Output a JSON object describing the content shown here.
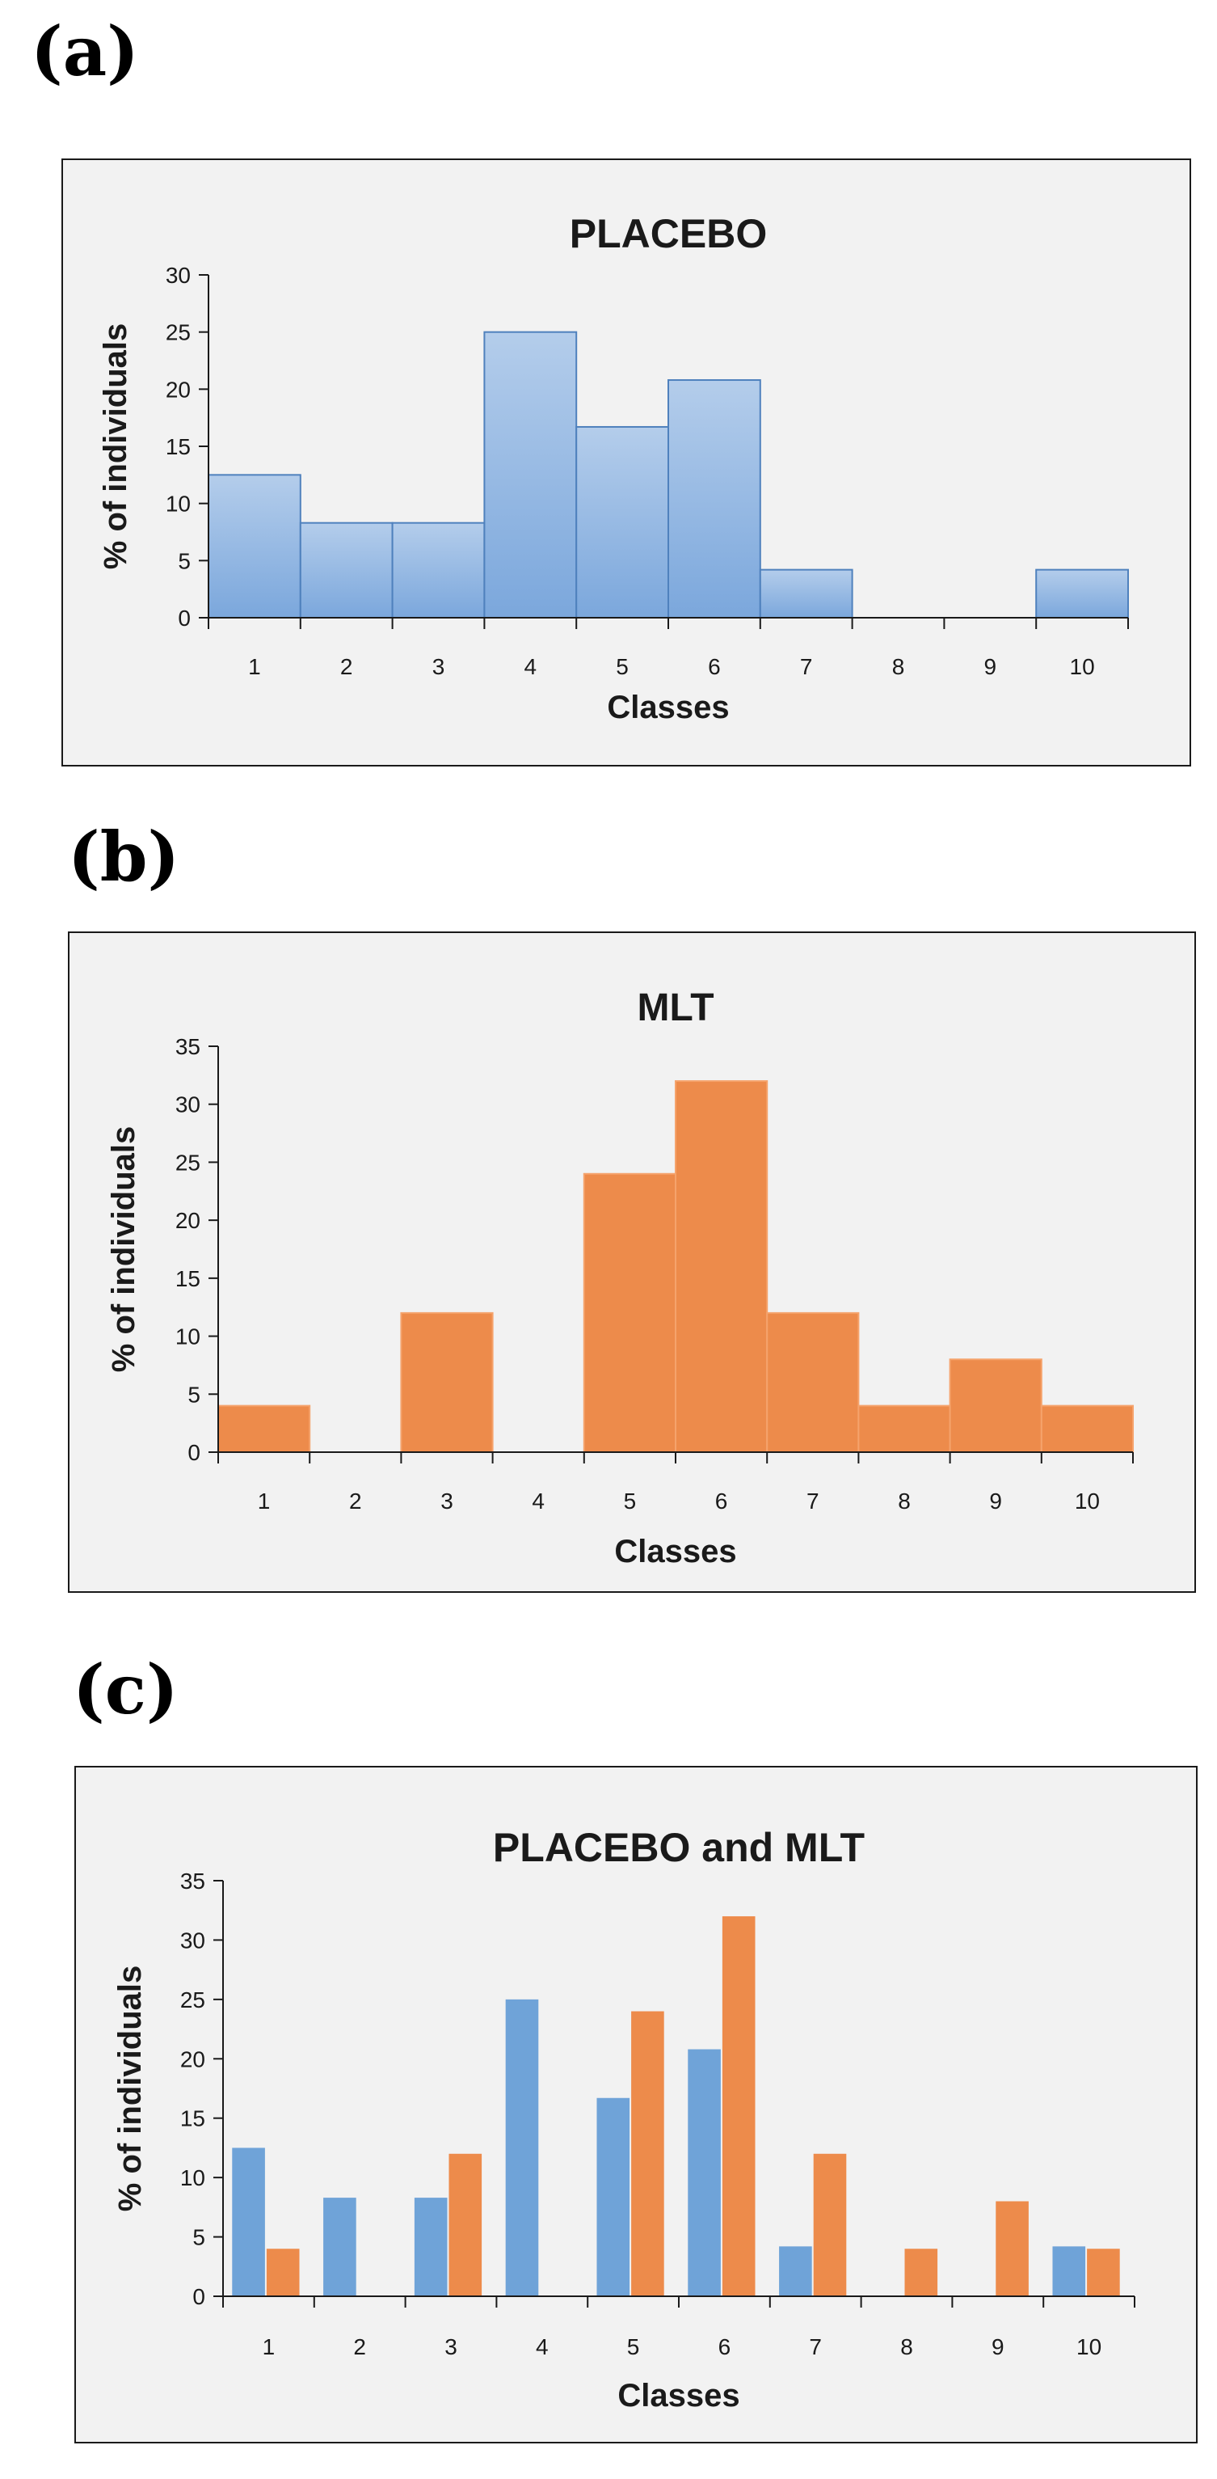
{
  "colors": {
    "placebo": "#7ba7dc",
    "placebo_light": "#b4cdeb",
    "placebo_edge": "#4f81bd",
    "mlt": "#ed8b4b",
    "mlt_edge": "#f5a36c",
    "plot_bg": "#f2f2f2",
    "axis": "#1a1a1a"
  },
  "panels": [
    {
      "letter": "(a)"
    },
    {
      "letter": "(b)"
    },
    {
      "letter": "(c)"
    }
  ],
  "chart_data": [
    {
      "type": "bar",
      "title": "PLACEBO",
      "xlabel": "Classes",
      "ylabel": "% of individuals",
      "categories": [
        "1",
        "2",
        "3",
        "4",
        "5",
        "6",
        "7",
        "8",
        "9",
        "10"
      ],
      "ylim": [
        0,
        30
      ],
      "yticks": [
        "0",
        "5",
        "10",
        "15",
        "20",
        "25",
        "30"
      ],
      "grid": false,
      "series": [
        {
          "values": [
            12.5,
            8.3,
            8.3,
            25,
            16.7,
            20.8,
            4.2,
            0,
            0,
            4.2
          ],
          "color": "#7ba7dc"
        }
      ]
    },
    {
      "type": "bar",
      "title": "MLT",
      "xlabel": "Classes",
      "ylabel": "% of individuals",
      "categories": [
        "1",
        "2",
        "3",
        "4",
        "5",
        "6",
        "7",
        "8",
        "9",
        "10"
      ],
      "ylim": [
        0,
        35
      ],
      "yticks": [
        "0",
        "5",
        "10",
        "15",
        "20",
        "25",
        "30",
        "35"
      ],
      "grid": false,
      "series": [
        {
          "values": [
            4,
            0,
            12,
            0,
            24,
            32,
            12,
            4,
            8,
            4
          ],
          "color": "#ed8b4b"
        }
      ]
    },
    {
      "type": "bar",
      "title": "PLACEBO and MLT",
      "xlabel": "Classes",
      "ylabel": "% of individuals",
      "categories": [
        "1",
        "2",
        "3",
        "4",
        "5",
        "6",
        "7",
        "8",
        "9",
        "10"
      ],
      "ylim": [
        0,
        35
      ],
      "yticks": [
        "0",
        "5",
        "10",
        "15",
        "20",
        "25",
        "30",
        "35"
      ],
      "grid": false,
      "series": [
        {
          "values": [
            12.5,
            8.3,
            8.3,
            25,
            16.7,
            20.8,
            4.2,
            0,
            0,
            4.2
          ],
          "color": "#6fa3d8"
        },
        {
          "values": [
            4,
            0,
            12,
            0,
            24,
            32,
            12,
            4,
            8,
            4
          ],
          "color": "#ed8b4b"
        }
      ]
    }
  ]
}
